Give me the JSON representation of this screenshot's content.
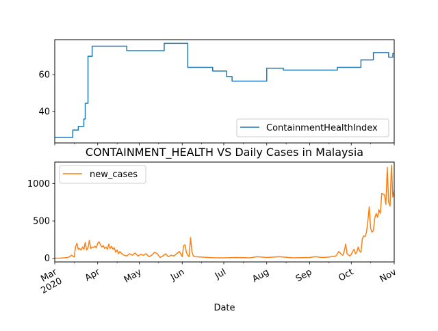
{
  "chart_data": [
    {
      "type": "line",
      "title": "",
      "xlabel": "",
      "ylabel": "",
      "xlim": [
        "2020-03-01",
        "2020-11-01"
      ],
      "ylim": [
        23,
        79
      ],
      "yticks": [
        40,
        60
      ],
      "ytick_labels": [
        "40",
        "60"
      ],
      "legend": "lower-right",
      "grid": false,
      "series": [
        {
          "name": "ContainmentHealthIndex",
          "color": "#1f77b4",
          "x": [
            "2020-03-01",
            "2020-03-14",
            "2020-03-14",
            "2020-03-18",
            "2020-03-18",
            "2020-03-22",
            "2020-03-22",
            "2020-03-23",
            "2020-03-23",
            "2020-03-25",
            "2020-03-25",
            "2020-03-28",
            "2020-03-28",
            "2020-04-22",
            "2020-04-22",
            "2020-05-19",
            "2020-05-19",
            "2020-06-05",
            "2020-06-05",
            "2020-06-23",
            "2020-06-23",
            "2020-07-03",
            "2020-07-03",
            "2020-07-07",
            "2020-07-07",
            "2020-08-01",
            "2020-08-01",
            "2020-08-13",
            "2020-08-13",
            "2020-09-21",
            "2020-09-21",
            "2020-10-08",
            "2020-10-08",
            "2020-10-17",
            "2020-10-17",
            "2020-10-20",
            "2020-10-20",
            "2020-10-28",
            "2020-10-28",
            "2020-10-31",
            "2020-10-31",
            "2020-11-07"
          ],
          "y": [
            26,
            26,
            30,
            30,
            32,
            32,
            36,
            36,
            44.5,
            44.5,
            70,
            70,
            75.5,
            75.5,
            73,
            73,
            77,
            77,
            64,
            64,
            62,
            62,
            59,
            59,
            56.5,
            56.5,
            63.5,
            63.5,
            62.5,
            62.5,
            64,
            64,
            68,
            68,
            72,
            72,
            72,
            72,
            69.5,
            69.5,
            71.5,
            71.5
          ]
        }
      ]
    },
    {
      "type": "line",
      "title": "CONTAINMENT_HEALTH VS Daily Cases in Malaysia",
      "xlabel": "Date",
      "ylabel": "",
      "xlim": [
        "2020-03-01",
        "2020-11-01"
      ],
      "ylim": [
        -50,
        1290
      ],
      "yticks": [
        0,
        500,
        1000
      ],
      "ytick_labels": [
        "0",
        "500",
        "1000"
      ],
      "x_tick_dates": [
        "2020-03-01",
        "2020-04-01",
        "2020-05-01",
        "2020-06-01",
        "2020-07-01",
        "2020-08-01",
        "2020-09-01",
        "2020-10-01",
        "2020-11-01"
      ],
      "x_tick_labels": [
        "Mar\n2020",
        "Apr",
        "May",
        "Jun",
        "Jul",
        "Aug",
        "Sep",
        "Oct",
        "Nov"
      ],
      "legend": "upper-left",
      "grid": false,
      "series": [
        {
          "name": "new_cases",
          "color": "#ff7f0e",
          "x": [
            "2020-03-01",
            "2020-03-05",
            "2020-03-08",
            "2020-03-10",
            "2020-03-12",
            "2020-03-13",
            "2020-03-14",
            "2020-03-15",
            "2020-03-16",
            "2020-03-17",
            "2020-03-18",
            "2020-03-19",
            "2020-03-20",
            "2020-03-21",
            "2020-03-22",
            "2020-03-23",
            "2020-03-24",
            "2020-03-25",
            "2020-03-26",
            "2020-03-27",
            "2020-03-28",
            "2020-03-29",
            "2020-03-30",
            "2020-03-31",
            "2020-04-01",
            "2020-04-02",
            "2020-04-03",
            "2020-04-04",
            "2020-04-05",
            "2020-04-06",
            "2020-04-07",
            "2020-04-08",
            "2020-04-09",
            "2020-04-10",
            "2020-04-11",
            "2020-04-12",
            "2020-04-13",
            "2020-04-14",
            "2020-04-15",
            "2020-04-16",
            "2020-04-17",
            "2020-04-18",
            "2020-04-19",
            "2020-04-20",
            "2020-04-22",
            "2020-04-24",
            "2020-04-26",
            "2020-04-28",
            "2020-04-30",
            "2020-05-02",
            "2020-05-04",
            "2020-05-06",
            "2020-05-08",
            "2020-05-10",
            "2020-05-12",
            "2020-05-14",
            "2020-05-16",
            "2020-05-18",
            "2020-05-20",
            "2020-05-22",
            "2020-05-24",
            "2020-05-26",
            "2020-05-28",
            "2020-05-30",
            "2020-06-01",
            "2020-06-02",
            "2020-06-03",
            "2020-06-04",
            "2020-06-05",
            "2020-06-06",
            "2020-06-07",
            "2020-06-08",
            "2020-06-09",
            "2020-06-10",
            "2020-06-15",
            "2020-06-20",
            "2020-06-25",
            "2020-07-01",
            "2020-07-10",
            "2020-07-20",
            "2020-07-25",
            "2020-08-01",
            "2020-08-10",
            "2020-08-20",
            "2020-09-01",
            "2020-09-05",
            "2020-09-10",
            "2020-09-15",
            "2020-09-20",
            "2020-09-22",
            "2020-09-24",
            "2020-09-25",
            "2020-09-26",
            "2020-09-27",
            "2020-09-28",
            "2020-09-30",
            "2020-10-01",
            "2020-10-02",
            "2020-10-03",
            "2020-10-04",
            "2020-10-05",
            "2020-10-06",
            "2020-10-07",
            "2020-10-08",
            "2020-10-09",
            "2020-10-10",
            "2020-10-11",
            "2020-10-12",
            "2020-10-13",
            "2020-10-14",
            "2020-10-15",
            "2020-10-16",
            "2020-10-17",
            "2020-10-18",
            "2020-10-19",
            "2020-10-20",
            "2020-10-21",
            "2020-10-22",
            "2020-10-23",
            "2020-10-24",
            "2020-10-25",
            "2020-10-26",
            "2020-10-27",
            "2020-10-28",
            "2020-10-29",
            "2020-10-30",
            "2020-10-31",
            "2020-11-01"
          ],
          "y": [
            0,
            2,
            5,
            10,
            20,
            40,
            30,
            15,
            150,
            200,
            120,
            130,
            110,
            150,
            120,
            210,
            110,
            140,
            240,
            130,
            150,
            145,
            160,
            140,
            200,
            220,
            180,
            150,
            170,
            130,
            150,
            120,
            190,
            130,
            160,
            120,
            140,
            80,
            110,
            60,
            90,
            70,
            50,
            40,
            30,
            60,
            40,
            70,
            30,
            50,
            40,
            60,
            20,
            40,
            80,
            60,
            10,
            30,
            60,
            20,
            40,
            30,
            60,
            90,
            20,
            170,
            180,
            80,
            40,
            20,
            277,
            90,
            30,
            20,
            15,
            10,
            5,
            5,
            10,
            5,
            20,
            10,
            20,
            5,
            10,
            20,
            10,
            15,
            30,
            90,
            50,
            40,
            100,
            190,
            60,
            30,
            50,
            90,
            120,
            60,
            80,
            150,
            100,
            80,
            260,
            300,
            290,
            350,
            500,
            690,
            400,
            350,
            370,
            540,
            600,
            550,
            650,
            600,
            870,
            860,
            850,
            720,
            1220,
            750,
            700,
            1250,
            820,
            900
          ]
        }
      ]
    }
  ]
}
